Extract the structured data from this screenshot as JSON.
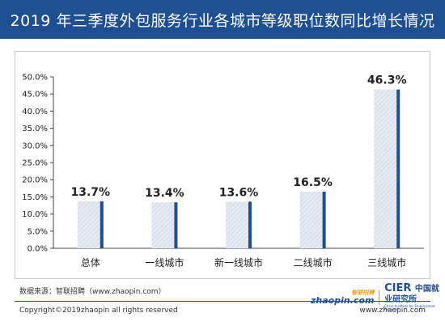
{
  "title": "2019 年三季度外包服务行业各城市等级职位数同比增长情况",
  "colors": {
    "header_bg": "#1e4f93",
    "bar_fill": "#dbe2ee",
    "bar_edge": "#1e4f93"
  },
  "chart_data": {
    "type": "bar",
    "title": "2019 年三季度外包服务行业各城市等级职位数同比增长情况",
    "categories": [
      "总体",
      "一线城市",
      "新一线城市",
      "二线城市",
      "三线城市"
    ],
    "values": [
      13.7,
      13.4,
      13.6,
      16.5,
      46.3
    ],
    "value_labels": [
      "13.7%",
      "13.4%",
      "13.6%",
      "16.5%",
      "46.3%"
    ],
    "ylim": [
      0,
      50
    ],
    "yticks": [
      "0.0%",
      "5.0%",
      "10.0%",
      "15.0%",
      "20.0%",
      "25.0%",
      "30.0%",
      "35.0%",
      "40.0%",
      "45.0%",
      "50.0%"
    ],
    "ytick_values": [
      0,
      5,
      10,
      15,
      20,
      25,
      30,
      35,
      40,
      45,
      50
    ],
    "xlabel": "",
    "ylabel": "",
    "grid": false,
    "legend": "none"
  },
  "footer": {
    "source": "数据来源：智联招聘（www.zhaopin.com）",
    "copyright": "Copyright©2019zhaopin all rights reserved",
    "website": "www.zhaopin.com",
    "logo_zhaopin": "zhaopin.com",
    "logo_zhaopin_cn": "智联招聘",
    "logo_cier": "CIER",
    "logo_cier_cn": "中国就业研究所",
    "logo_cier_en": "China Institute for Employment Research"
  }
}
